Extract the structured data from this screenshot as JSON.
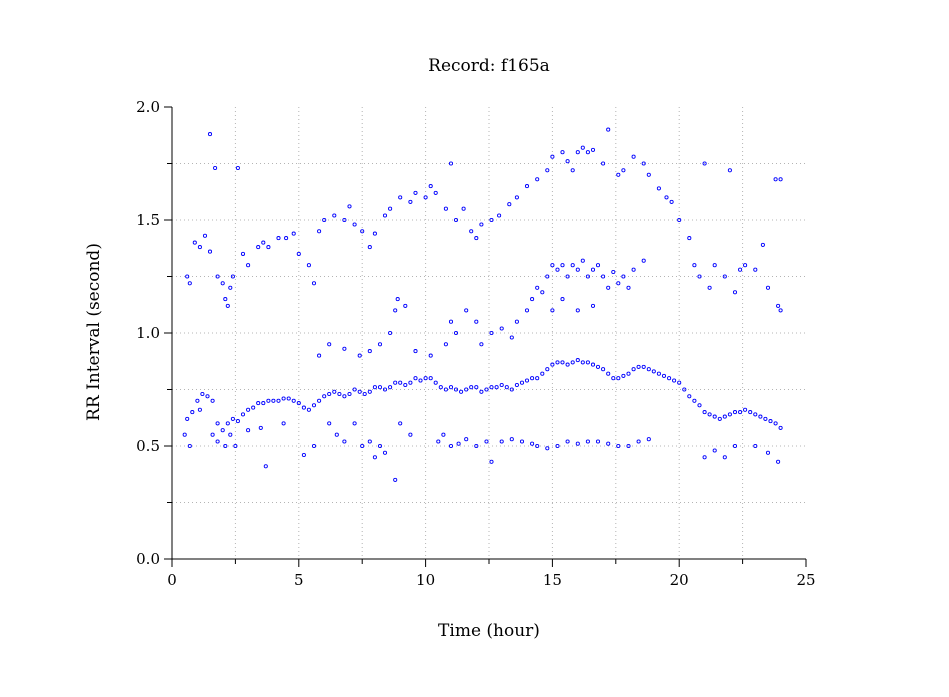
{
  "chart_data": {
    "type": "scatter",
    "title": "Record:  f165a",
    "xlabel": "Time (hour)",
    "ylabel": "RR Interval (second)",
    "xlim": [
      0,
      25
    ],
    "ylim": [
      0.0,
      2.0
    ],
    "x_ticks": [
      "0",
      "5",
      "10",
      "15",
      "20",
      "25"
    ],
    "y_ticks": [
      "0.0",
      "0.5",
      "1.0",
      "1.5",
      "2.0"
    ],
    "x_tick_values": [
      0,
      5,
      10,
      15,
      20,
      25
    ],
    "y_tick_values": [
      0.0,
      0.5,
      1.0,
      1.5,
      2.0
    ],
    "grid": true,
    "marker": "open-circle",
    "color": "#0000ff",
    "series": [
      {
        "values": [
          [
            0.6,
            0.62
          ],
          [
            0.8,
            0.65
          ],
          [
            1.0,
            0.7
          ],
          [
            1.2,
            0.73
          ],
          [
            1.4,
            0.72
          ],
          [
            1.6,
            0.7
          ],
          [
            1.8,
            0.6
          ],
          [
            2.0,
            0.57
          ],
          [
            2.2,
            0.6
          ],
          [
            2.4,
            0.62
          ],
          [
            2.6,
            0.61
          ],
          [
            2.8,
            0.64
          ],
          [
            3.0,
            0.66
          ],
          [
            3.2,
            0.67
          ],
          [
            3.4,
            0.69
          ],
          [
            3.6,
            0.69
          ],
          [
            3.8,
            0.7
          ],
          [
            4.0,
            0.7
          ],
          [
            4.2,
            0.7
          ],
          [
            4.4,
            0.71
          ],
          [
            4.6,
            0.71
          ],
          [
            4.8,
            0.7
          ],
          [
            5.0,
            0.69
          ],
          [
            5.2,
            0.67
          ],
          [
            5.4,
            0.66
          ],
          [
            5.6,
            0.68
          ],
          [
            5.8,
            0.7
          ],
          [
            6.0,
            0.72
          ],
          [
            6.2,
            0.73
          ],
          [
            6.4,
            0.74
          ],
          [
            6.6,
            0.73
          ],
          [
            6.8,
            0.72
          ],
          [
            7.0,
            0.73
          ],
          [
            7.2,
            0.75
          ],
          [
            7.4,
            0.74
          ],
          [
            7.6,
            0.73
          ],
          [
            7.8,
            0.74
          ],
          [
            8.0,
            0.76
          ],
          [
            8.2,
            0.76
          ],
          [
            8.4,
            0.75
          ],
          [
            8.6,
            0.76
          ],
          [
            8.8,
            0.78
          ],
          [
            9.0,
            0.78
          ],
          [
            9.2,
            0.77
          ],
          [
            9.4,
            0.78
          ],
          [
            9.6,
            0.8
          ],
          [
            9.8,
            0.79
          ],
          [
            10.0,
            0.8
          ],
          [
            10.2,
            0.8
          ],
          [
            10.4,
            0.78
          ],
          [
            10.6,
            0.76
          ],
          [
            10.8,
            0.75
          ],
          [
            11.0,
            0.76
          ],
          [
            11.2,
            0.75
          ],
          [
            11.4,
            0.74
          ],
          [
            11.6,
            0.75
          ],
          [
            11.8,
            0.76
          ],
          [
            12.0,
            0.76
          ],
          [
            12.2,
            0.74
          ],
          [
            12.4,
            0.75
          ],
          [
            12.6,
            0.76
          ],
          [
            12.8,
            0.76
          ],
          [
            13.0,
            0.77
          ],
          [
            13.2,
            0.76
          ],
          [
            13.4,
            0.75
          ],
          [
            13.6,
            0.77
          ],
          [
            13.8,
            0.78
          ],
          [
            14.0,
            0.79
          ],
          [
            14.2,
            0.8
          ],
          [
            14.4,
            0.8
          ],
          [
            14.6,
            0.82
          ],
          [
            14.8,
            0.84
          ],
          [
            15.0,
            0.86
          ],
          [
            15.2,
            0.87
          ],
          [
            15.4,
            0.87
          ],
          [
            15.6,
            0.86
          ],
          [
            15.8,
            0.87
          ],
          [
            16.0,
            0.88
          ],
          [
            16.2,
            0.87
          ],
          [
            16.4,
            0.87
          ],
          [
            16.6,
            0.86
          ],
          [
            16.8,
            0.85
          ],
          [
            17.0,
            0.84
          ],
          [
            17.2,
            0.82
          ],
          [
            17.4,
            0.8
          ],
          [
            17.6,
            0.8
          ],
          [
            17.8,
            0.81
          ],
          [
            18.0,
            0.82
          ],
          [
            18.2,
            0.84
          ],
          [
            18.4,
            0.85
          ],
          [
            18.6,
            0.85
          ],
          [
            18.8,
            0.84
          ],
          [
            19.0,
            0.83
          ],
          [
            19.2,
            0.82
          ],
          [
            19.4,
            0.81
          ],
          [
            19.6,
            0.8
          ],
          [
            19.8,
            0.79
          ],
          [
            20.0,
            0.78
          ],
          [
            20.2,
            0.75
          ],
          [
            20.4,
            0.72
          ],
          [
            20.6,
            0.7
          ],
          [
            20.8,
            0.68
          ],
          [
            21.0,
            0.65
          ],
          [
            21.2,
            0.64
          ],
          [
            21.4,
            0.63
          ],
          [
            21.6,
            0.62
          ],
          [
            21.8,
            0.63
          ],
          [
            22.0,
            0.64
          ],
          [
            22.2,
            0.65
          ],
          [
            22.4,
            0.65
          ],
          [
            22.6,
            0.66
          ],
          [
            22.8,
            0.65
          ],
          [
            23.0,
            0.64
          ],
          [
            23.2,
            0.63
          ],
          [
            23.4,
            0.62
          ],
          [
            23.6,
            0.61
          ],
          [
            23.8,
            0.6
          ],
          [
            24.0,
            0.58
          ],
          [
            0.5,
            0.55
          ],
          [
            0.7,
            0.5
          ],
          [
            1.1,
            0.66
          ],
          [
            1.6,
            0.55
          ],
          [
            1.8,
            0.52
          ],
          [
            2.1,
            0.5
          ],
          [
            2.3,
            0.55
          ],
          [
            2.5,
            0.5
          ],
          [
            3.0,
            0.57
          ],
          [
            3.5,
            0.58
          ],
          [
            3.7,
            0.41
          ],
          [
            4.4,
            0.6
          ],
          [
            5.2,
            0.46
          ],
          [
            5.6,
            0.5
          ],
          [
            6.2,
            0.6
          ],
          [
            6.5,
            0.55
          ],
          [
            6.8,
            0.52
          ],
          [
            7.2,
            0.6
          ],
          [
            7.5,
            0.5
          ],
          [
            7.8,
            0.52
          ],
          [
            8.0,
            0.45
          ],
          [
            8.2,
            0.5
          ],
          [
            8.4,
            0.47
          ],
          [
            8.8,
            0.35
          ],
          [
            9.0,
            0.6
          ],
          [
            9.4,
            0.55
          ],
          [
            10.5,
            0.52
          ],
          [
            10.7,
            0.55
          ],
          [
            11.0,
            0.5
          ],
          [
            11.3,
            0.51
          ],
          [
            11.6,
            0.53
          ],
          [
            12.0,
            0.5
          ],
          [
            12.4,
            0.52
          ],
          [
            12.6,
            0.43
          ],
          [
            13.0,
            0.52
          ],
          [
            13.4,
            0.53
          ],
          [
            13.8,
            0.52
          ],
          [
            14.2,
            0.51
          ],
          [
            14.4,
            0.5
          ],
          [
            14.8,
            0.49
          ],
          [
            15.2,
            0.5
          ],
          [
            15.6,
            0.52
          ],
          [
            16.0,
            0.51
          ],
          [
            16.4,
            0.52
          ],
          [
            16.8,
            0.52
          ],
          [
            17.2,
            0.51
          ],
          [
            17.6,
            0.5
          ],
          [
            18.0,
            0.5
          ],
          [
            18.4,
            0.52
          ],
          [
            18.8,
            0.53
          ],
          [
            21.0,
            0.45
          ],
          [
            21.4,
            0.48
          ],
          [
            21.8,
            0.45
          ],
          [
            22.2,
            0.5
          ],
          [
            23.0,
            0.5
          ],
          [
            23.5,
            0.47
          ],
          [
            23.9,
            0.43
          ],
          [
            5.8,
            0.9
          ],
          [
            6.2,
            0.95
          ],
          [
            6.8,
            0.93
          ],
          [
            7.4,
            0.9
          ],
          [
            7.8,
            0.92
          ],
          [
            8.2,
            0.95
          ],
          [
            8.6,
            1.0
          ],
          [
            8.8,
            1.1
          ],
          [
            8.9,
            1.15
          ],
          [
            9.2,
            1.12
          ],
          [
            9.6,
            0.92
          ],
          [
            10.2,
            0.9
          ],
          [
            10.8,
            0.95
          ],
          [
            11.0,
            1.05
          ],
          [
            11.2,
            1.0
          ],
          [
            11.6,
            1.1
          ],
          [
            12.0,
            1.05
          ],
          [
            12.2,
            0.95
          ],
          [
            12.6,
            1.0
          ],
          [
            13.0,
            1.02
          ],
          [
            13.4,
            0.98
          ],
          [
            13.6,
            1.05
          ],
          [
            14.0,
            1.1
          ],
          [
            14.2,
            1.15
          ],
          [
            14.4,
            1.2
          ],
          [
            14.6,
            1.18
          ],
          [
            14.8,
            1.25
          ],
          [
            15.0,
            1.3
          ],
          [
            15.2,
            1.28
          ],
          [
            15.4,
            1.3
          ],
          [
            15.6,
            1.25
          ],
          [
            15.8,
            1.3
          ],
          [
            16.0,
            1.28
          ],
          [
            16.2,
            1.32
          ],
          [
            16.4,
            1.25
          ],
          [
            16.6,
            1.28
          ],
          [
            16.8,
            1.3
          ],
          [
            17.0,
            1.25
          ],
          [
            17.2,
            1.2
          ],
          [
            17.4,
            1.27
          ],
          [
            17.6,
            1.22
          ],
          [
            17.8,
            1.25
          ],
          [
            18.0,
            1.2
          ],
          [
            18.2,
            1.28
          ],
          [
            18.6,
            1.32
          ],
          [
            15.0,
            1.1
          ],
          [
            15.4,
            1.15
          ],
          [
            16.0,
            1.1
          ],
          [
            16.6,
            1.12
          ],
          [
            0.6,
            1.25
          ],
          [
            0.7,
            1.22
          ],
          [
            0.9,
            1.4
          ],
          [
            1.1,
            1.38
          ],
          [
            1.3,
            1.43
          ],
          [
            1.5,
            1.36
          ],
          [
            1.5,
            1.88
          ],
          [
            1.7,
            1.73
          ],
          [
            1.8,
            1.25
          ],
          [
            2.0,
            1.22
          ],
          [
            2.1,
            1.15
          ],
          [
            2.2,
            1.12
          ],
          [
            2.3,
            1.2
          ],
          [
            2.4,
            1.25
          ],
          [
            2.6,
            1.73
          ],
          [
            2.8,
            1.35
          ],
          [
            3.0,
            1.3
          ],
          [
            3.4,
            1.38
          ],
          [
            3.6,
            1.4
          ],
          [
            3.8,
            1.38
          ],
          [
            4.2,
            1.42
          ],
          [
            4.5,
            1.42
          ],
          [
            4.8,
            1.44
          ],
          [
            5.0,
            1.35
          ],
          [
            5.4,
            1.3
          ],
          [
            5.6,
            1.22
          ],
          [
            5.8,
            1.45
          ],
          [
            6.0,
            1.5
          ],
          [
            6.4,
            1.52
          ],
          [
            6.8,
            1.5
          ],
          [
            7.0,
            1.56
          ],
          [
            7.2,
            1.48
          ],
          [
            7.5,
            1.45
          ],
          [
            7.8,
            1.38
          ],
          [
            8.0,
            1.44
          ],
          [
            8.4,
            1.52
          ],
          [
            8.6,
            1.55
          ],
          [
            9.0,
            1.6
          ],
          [
            9.4,
            1.58
          ],
          [
            9.6,
            1.62
          ],
          [
            10.0,
            1.6
          ],
          [
            10.2,
            1.65
          ],
          [
            10.4,
            1.62
          ],
          [
            10.8,
            1.55
          ],
          [
            11.0,
            1.75
          ],
          [
            11.2,
            1.5
          ],
          [
            11.5,
            1.55
          ],
          [
            11.8,
            1.45
          ],
          [
            12.0,
            1.42
          ],
          [
            12.2,
            1.48
          ],
          [
            12.6,
            1.5
          ],
          [
            12.9,
            1.52
          ],
          [
            13.3,
            1.57
          ],
          [
            13.6,
            1.6
          ],
          [
            14.0,
            1.65
          ],
          [
            14.4,
            1.68
          ],
          [
            14.8,
            1.72
          ],
          [
            15.0,
            1.78
          ],
          [
            15.4,
            1.8
          ],
          [
            15.6,
            1.76
          ],
          [
            15.8,
            1.72
          ],
          [
            16.0,
            1.8
          ],
          [
            16.2,
            1.82
          ],
          [
            16.4,
            1.8
          ],
          [
            16.6,
            1.81
          ],
          [
            17.0,
            1.75
          ],
          [
            17.2,
            1.9
          ],
          [
            17.6,
            1.7
          ],
          [
            17.8,
            1.72
          ],
          [
            18.2,
            1.78
          ],
          [
            18.6,
            1.75
          ],
          [
            18.8,
            1.7
          ],
          [
            19.2,
            1.64
          ],
          [
            19.5,
            1.6
          ],
          [
            19.7,
            1.58
          ],
          [
            20.0,
            1.5
          ],
          [
            20.4,
            1.42
          ],
          [
            20.6,
            1.3
          ],
          [
            20.8,
            1.25
          ],
          [
            21.0,
            1.75
          ],
          [
            21.2,
            1.2
          ],
          [
            21.4,
            1.3
          ],
          [
            21.8,
            1.25
          ],
          [
            22.0,
            1.72
          ],
          [
            22.2,
            1.18
          ],
          [
            22.4,
            1.28
          ],
          [
            22.6,
            1.3
          ],
          [
            23.0,
            1.28
          ],
          [
            23.3,
            1.39
          ],
          [
            23.5,
            1.2
          ],
          [
            23.8,
            1.68
          ],
          [
            24.0,
            1.68
          ],
          [
            23.9,
            1.12
          ],
          [
            24.0,
            1.1
          ]
        ]
      }
    ]
  }
}
